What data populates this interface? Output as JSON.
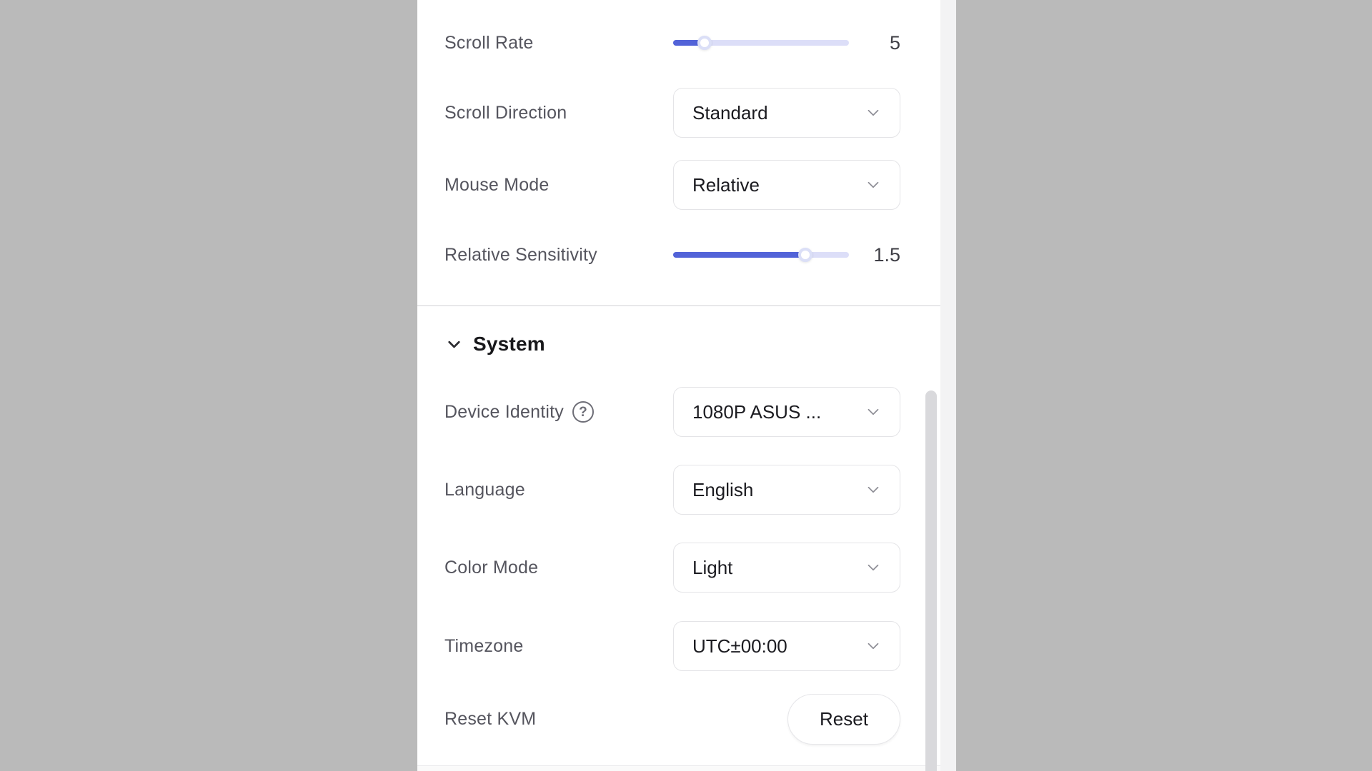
{
  "colors": {
    "backdrop": "#bababa",
    "panel": "#ffffff",
    "accent_blue": "#5263d8",
    "slider_track": "#dcdef8",
    "border": "#e4e4e7",
    "label_text": "#55555e",
    "value_text": "#1b1b20",
    "scrollbar": "#d9d9dc"
  },
  "pointer_rows": [
    {
      "id": "scroll-rate",
      "label": "Scroll Rate",
      "control": "slider",
      "value": "5",
      "fill_percent": 18
    },
    {
      "id": "scroll-direction",
      "label": "Scroll Direction",
      "control": "select",
      "value": "Standard"
    },
    {
      "id": "mouse-mode",
      "label": "Mouse Mode",
      "control": "select",
      "value": "Relative"
    },
    {
      "id": "relative-sensitivity",
      "label": "Relative Sensitivity",
      "control": "slider",
      "value": "1.5",
      "fill_percent": 75
    }
  ],
  "system": {
    "title": "System",
    "rows": [
      {
        "id": "device-identity",
        "label": "Device Identity",
        "control": "select",
        "value": "1080P ASUS ..."
      },
      {
        "id": "language",
        "label": "Language",
        "control": "select",
        "value": "English"
      },
      {
        "id": "color-mode",
        "label": "Color Mode",
        "control": "select",
        "value": "Light"
      },
      {
        "id": "timezone",
        "label": "Timezone",
        "control": "select",
        "value": "UTC±00:00"
      },
      {
        "id": "reset-kvm",
        "label": "Reset KVM",
        "control": "button",
        "button_label": "Reset"
      }
    ]
  },
  "icons": {
    "help_glyph": "?"
  }
}
